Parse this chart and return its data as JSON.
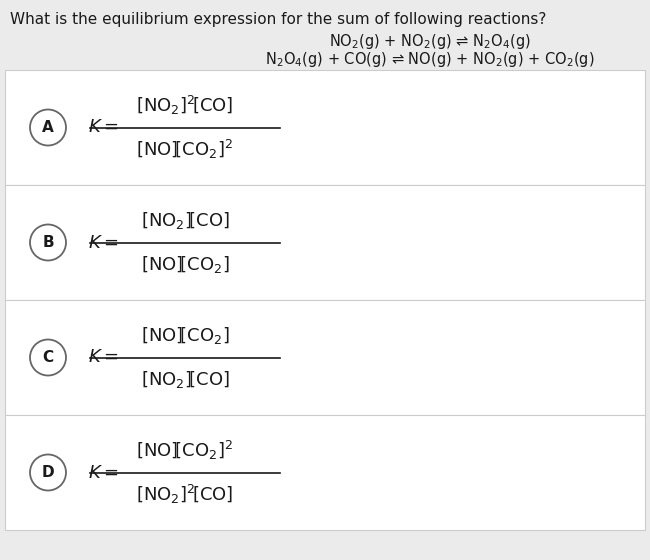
{
  "bg_color": "#ebebeb",
  "white_color": "#ffffff",
  "text_color": "#1a1a1a",
  "question": "What is the equilibrium expression for the sum of following reactions?",
  "reaction1": "NO$_2$(g) + NO$_2$(g) ⇌ N$_2$O$_4$(g)",
  "reaction2": "N$_2$O$_4$(g) + CO(g) ⇌ NO(g) + NO$_2$(g) + CO$_2$(g)",
  "options": [
    "A",
    "B",
    "C",
    "D"
  ],
  "numerators": [
    "$\\left[\\mathrm{NO_2}\\right]^2\\!\\left[\\mathrm{CO}\\right]$",
    "$\\left[\\mathrm{NO_2}\\right]\\!\\left[\\mathrm{CO}\\right]$",
    "$\\left[\\mathrm{NO}\\right]\\!\\left[\\mathrm{CO_2}\\right]$",
    "$\\left[\\mathrm{NO}\\right]\\!\\left[\\mathrm{CO_2}\\right]^2$"
  ],
  "denominators": [
    "$\\left[\\mathrm{NO}\\right]\\!\\left[\\mathrm{CO_2}\\right]^2$",
    "$\\left[\\mathrm{NO}\\right]\\!\\left[\\mathrm{CO_2}\\right]$",
    "$\\left[\\mathrm{NO_2}\\right]\\!\\left[\\mathrm{CO}\\right]$",
    "$\\left[\\mathrm{NO_2}\\right]^2\\!\\left[\\mathrm{CO}\\right]$"
  ],
  "figsize": [
    6.5,
    5.6
  ],
  "dpi": 100
}
